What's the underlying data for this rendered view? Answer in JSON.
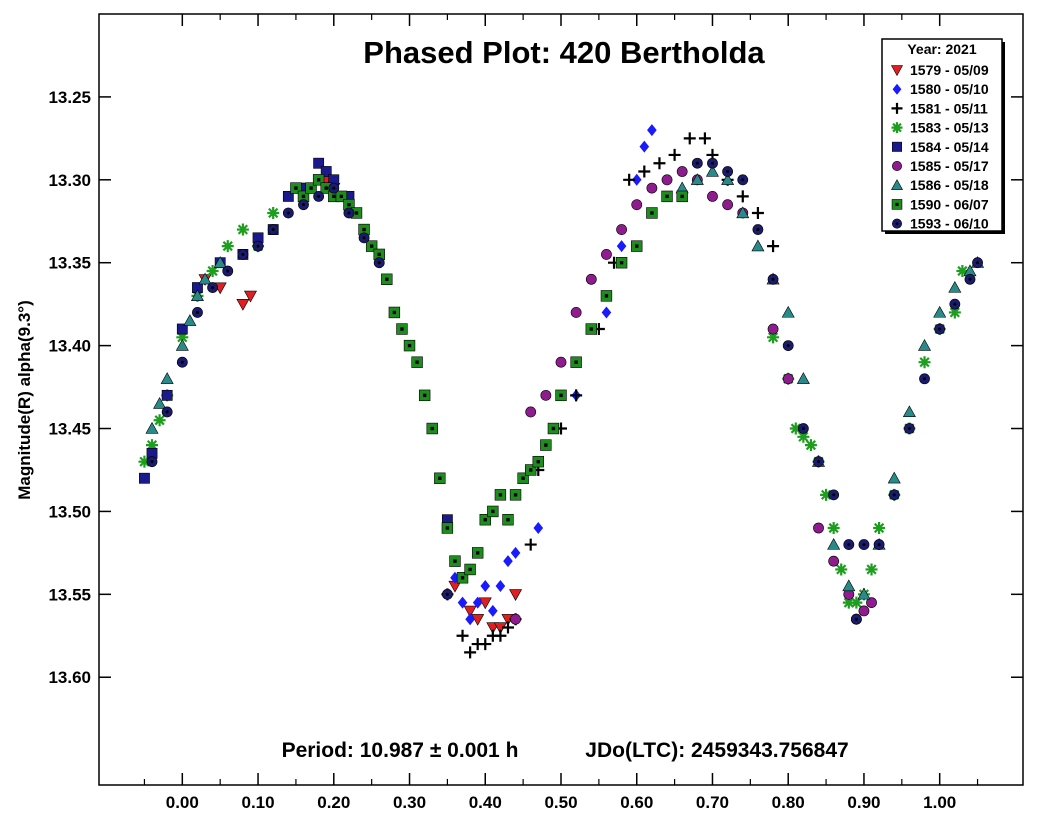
{
  "chart_data": {
    "type": "scatter",
    "title": "Phased Plot: 420 Bertholda",
    "ylabel": "Magnitude(R) alpha(9.3°)",
    "xlabel": "",
    "xlim": [
      -0.11,
      1.11
    ],
    "ylim": [
      13.2,
      13.665
    ],
    "y_inverted": true,
    "xticks": [
      "0.00",
      "0.10",
      "0.20",
      "0.30",
      "0.40",
      "0.50",
      "0.60",
      "0.70",
      "0.80",
      "0.90",
      "1.00"
    ],
    "yticks": [
      "13.25",
      "13.30",
      "13.35",
      "13.40",
      "13.45",
      "13.50",
      "13.55",
      "13.60"
    ],
    "grid": false,
    "legend_placement": "top-right",
    "legend_title": "Year: 2021",
    "footer": {
      "period": "Period: 10.987 ± 0.001 h",
      "epoch": "JDo(LTC): 2459343.756847"
    },
    "series": [
      {
        "name": "1579 - 05/09",
        "marker": "triangle-down",
        "color": "#e02020",
        "x": [
          0.03,
          0.05,
          0.08,
          0.09,
          0.19,
          0.2,
          0.36,
          0.38,
          0.39,
          0.4,
          0.41,
          0.42,
          0.43,
          0.44
        ],
        "y": [
          13.36,
          13.365,
          13.375,
          13.37,
          13.3,
          13.305,
          13.545,
          13.56,
          13.565,
          13.555,
          13.57,
          13.57,
          13.565,
          13.55
        ]
      },
      {
        "name": "1580 - 05/10",
        "marker": "diamond",
        "color": "#1a1aff",
        "x": [
          0.36,
          0.37,
          0.38,
          0.39,
          0.4,
          0.41,
          0.42,
          0.43,
          0.44,
          0.47,
          0.52,
          0.56,
          0.58,
          0.6,
          0.61,
          0.62
        ],
        "y": [
          13.54,
          13.555,
          13.565,
          13.555,
          13.545,
          13.56,
          13.545,
          13.53,
          13.525,
          13.51,
          13.43,
          13.38,
          13.34,
          13.3,
          13.28,
          13.27
        ]
      },
      {
        "name": "1581 - 05/11",
        "marker": "plus",
        "color": "#000000",
        "x": [
          0.35,
          0.37,
          0.38,
          0.39,
          0.4,
          0.41,
          0.42,
          0.43,
          0.44,
          0.46,
          0.47,
          0.5,
          0.52,
          0.55,
          0.57,
          0.59,
          0.61,
          0.63,
          0.65,
          0.67,
          0.69,
          0.7,
          0.72,
          0.74,
          0.76,
          0.78
        ],
        "y": [
          13.55,
          13.575,
          13.585,
          13.58,
          13.58,
          13.575,
          13.575,
          13.57,
          13.565,
          13.52,
          13.475,
          13.45,
          13.43,
          13.39,
          13.35,
          13.3,
          13.295,
          13.29,
          13.285,
          13.275,
          13.275,
          13.285,
          13.3,
          13.31,
          13.32,
          13.34
        ]
      },
      {
        "name": "1583 - 05/13",
        "marker": "asterisk",
        "color": "#1e9e1e",
        "x": [
          -0.05,
          -0.04,
          -0.03,
          -0.02,
          0.0,
          0.02,
          0.04,
          0.06,
          0.08,
          0.1,
          0.12,
          0.78,
          0.8,
          0.81,
          0.82,
          0.83,
          0.84,
          0.85,
          0.86,
          0.87,
          0.88,
          0.89,
          0.9,
          0.91,
          0.92,
          0.94,
          0.96,
          0.98,
          1.0,
          1.02,
          1.03
        ],
        "y": [
          13.47,
          13.46,
          13.445,
          13.43,
          13.395,
          13.37,
          13.355,
          13.34,
          13.33,
          13.34,
          13.32,
          13.395,
          13.42,
          13.45,
          13.455,
          13.46,
          13.47,
          13.49,
          13.51,
          13.535,
          13.555,
          13.555,
          13.55,
          13.535,
          13.51,
          13.49,
          13.45,
          13.41,
          13.39,
          13.38,
          13.355
        ]
      },
      {
        "name": "1584 - 05/14",
        "marker": "square",
        "color": "#1a1a8c",
        "x": [
          -0.05,
          -0.04,
          -0.02,
          0.0,
          0.02,
          0.05,
          0.08,
          0.1,
          0.12,
          0.14,
          0.16,
          0.18,
          0.19,
          0.2,
          0.22,
          0.24,
          0.26,
          0.35
        ],
        "y": [
          13.48,
          13.465,
          13.43,
          13.39,
          13.365,
          13.35,
          13.345,
          13.335,
          13.33,
          13.31,
          13.305,
          13.29,
          13.295,
          13.3,
          13.31,
          13.33,
          13.345,
          13.505
        ]
      },
      {
        "name": "1585 - 05/17",
        "marker": "circle",
        "color": "#8e1c8e",
        "x": [
          0.44,
          0.46,
          0.48,
          0.5,
          0.52,
          0.54,
          0.56,
          0.58,
          0.6,
          0.62,
          0.64,
          0.66,
          0.68,
          0.7,
          0.72,
          0.74,
          0.78,
          0.8,
          0.84,
          0.86,
          0.88,
          0.89,
          0.9,
          0.91
        ],
        "y": [
          13.565,
          13.44,
          13.43,
          13.41,
          13.38,
          13.36,
          13.345,
          13.33,
          13.315,
          13.305,
          13.3,
          13.295,
          13.3,
          13.31,
          13.315,
          13.32,
          13.39,
          13.42,
          13.51,
          13.53,
          13.55,
          13.565,
          13.56,
          13.555
        ]
      },
      {
        "name": "1586 - 05/18",
        "marker": "triangle-up",
        "color": "#2a8a8a",
        "x": [
          -0.04,
          -0.03,
          -0.02,
          0.0,
          0.01,
          0.02,
          0.03,
          0.05,
          0.66,
          0.68,
          0.7,
          0.72,
          0.74,
          0.76,
          0.78,
          0.8,
          0.82,
          0.84,
          0.86,
          0.88,
          0.9,
          0.92,
          0.94,
          0.96,
          0.98,
          1.0,
          1.02,
          1.04,
          1.05
        ],
        "y": [
          13.45,
          13.435,
          13.42,
          13.4,
          13.385,
          13.37,
          13.36,
          13.35,
          13.305,
          13.3,
          13.295,
          13.3,
          13.32,
          13.34,
          13.36,
          13.38,
          13.42,
          13.47,
          13.52,
          13.545,
          13.55,
          13.52,
          13.48,
          13.44,
          13.4,
          13.38,
          13.365,
          13.355,
          13.35
        ]
      },
      {
        "name": "1590 - 06/07",
        "marker": "square-dot",
        "color": "#1e8c1e",
        "x": [
          0.15,
          0.16,
          0.17,
          0.18,
          0.19,
          0.2,
          0.21,
          0.22,
          0.23,
          0.24,
          0.25,
          0.26,
          0.27,
          0.28,
          0.29,
          0.3,
          0.31,
          0.32,
          0.33,
          0.34,
          0.35,
          0.36,
          0.37,
          0.38,
          0.39,
          0.4,
          0.41,
          0.42,
          0.43,
          0.44,
          0.45,
          0.46,
          0.47,
          0.48,
          0.49,
          0.5,
          0.52,
          0.54,
          0.56,
          0.58,
          0.6,
          0.62,
          0.64,
          0.66
        ],
        "y": [
          13.305,
          13.31,
          13.305,
          13.3,
          13.305,
          13.31,
          13.31,
          13.315,
          13.32,
          13.33,
          13.34,
          13.345,
          13.36,
          13.38,
          13.39,
          13.4,
          13.41,
          13.43,
          13.45,
          13.48,
          13.51,
          13.53,
          13.54,
          13.535,
          13.525,
          13.505,
          13.5,
          13.49,
          13.505,
          13.49,
          13.48,
          13.475,
          13.47,
          13.46,
          13.45,
          13.43,
          13.41,
          13.39,
          13.37,
          13.35,
          13.34,
          13.32,
          13.31,
          13.31
        ]
      },
      {
        "name": "1593 - 06/10",
        "marker": "circle-dot",
        "color": "#1a1a6e",
        "x": [
          -0.04,
          -0.02,
          0.0,
          0.02,
          0.04,
          0.06,
          0.08,
          0.1,
          0.12,
          0.14,
          0.16,
          0.18,
          0.2,
          0.22,
          0.24,
          0.26,
          0.35,
          0.68,
          0.7,
          0.72,
          0.74,
          0.76,
          0.78,
          0.8,
          0.82,
          0.84,
          0.86,
          0.88,
          0.89,
          0.9,
          0.92,
          0.94,
          0.96,
          0.98,
          1.0,
          1.02,
          1.04,
          1.05
        ],
        "y": [
          13.47,
          13.44,
          13.41,
          13.38,
          13.365,
          13.355,
          13.345,
          13.34,
          13.33,
          13.32,
          13.315,
          13.31,
          13.305,
          13.32,
          13.335,
          13.35,
          13.55,
          13.29,
          13.29,
          13.295,
          13.3,
          13.33,
          13.36,
          13.4,
          13.45,
          13.47,
          13.49,
          13.52,
          13.565,
          13.52,
          13.52,
          13.49,
          13.45,
          13.42,
          13.39,
          13.375,
          13.36,
          13.35
        ]
      }
    ]
  }
}
